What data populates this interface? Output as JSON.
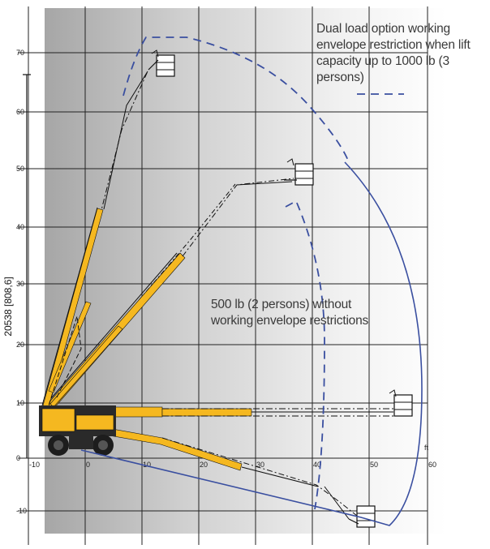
{
  "y_ticks": [
    "70",
    "60",
    "50",
    "40",
    "30",
    "20",
    "10",
    "0",
    "-10"
  ],
  "x_ticks": [
    "-10",
    "0",
    "10",
    "20",
    "30",
    "40",
    "50",
    "60"
  ],
  "x_unit": "ft",
  "height_label": "20538 [808,6]",
  "annotations": {
    "dual_load": "Dual load option working envelope restriction when lift capacity up to 1000 lb (3 persons)",
    "standard_load": "500 lb (2 persons) without working envelope restrictions"
  },
  "colors": {
    "envelope_line": "#3a4fa0",
    "boom": "#f5b820",
    "grid": "#222222",
    "machine_body": "#2a2a2a",
    "background_shade": "#a9a9a9"
  },
  "icons": [
    "aerial-lift-machine",
    "platform-basket",
    "wheel"
  ]
}
